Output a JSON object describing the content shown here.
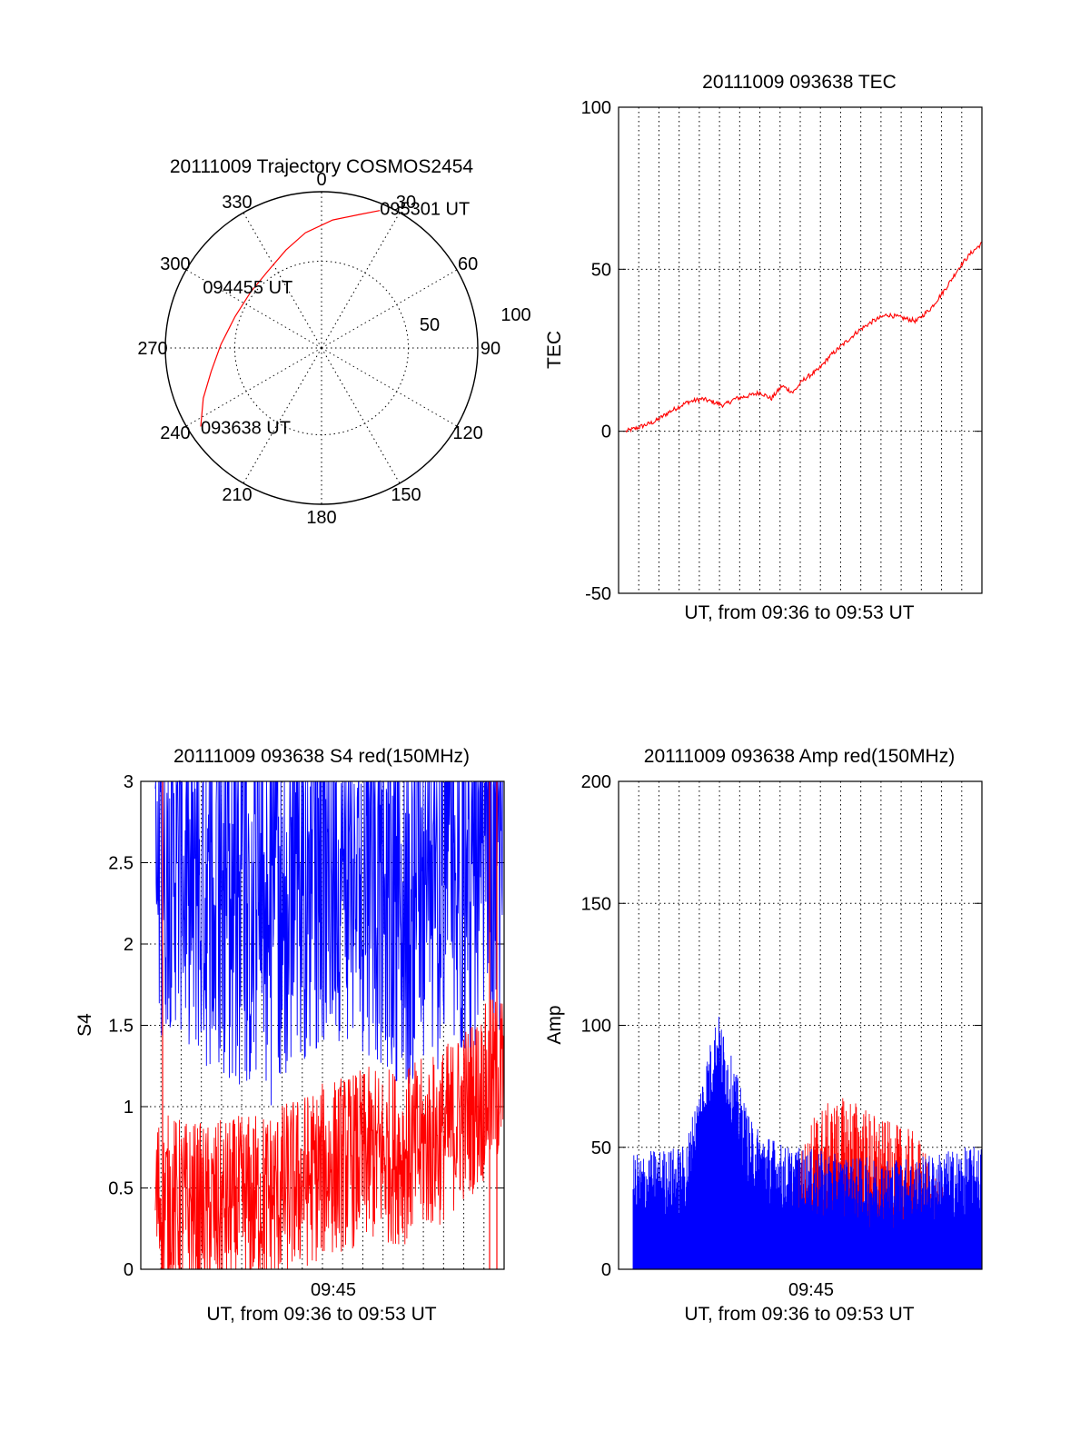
{
  "chart_data": [
    {
      "id": "trajectory",
      "type": "polar",
      "title": "20111009 Trajectory COSMOS2454",
      "azimuth_labels": [
        "0",
        "30",
        "60",
        "90",
        "120",
        "150",
        "180",
        "210",
        "240",
        "270",
        "300",
        "330"
      ],
      "radial_labels": [
        "50",
        "100"
      ],
      "trajectory_color": "#ff0000",
      "trajectory": [
        {
          "az": 237,
          "zen": 83
        },
        {
          "az": 247,
          "zen": 74
        },
        {
          "az": 258,
          "zen": 65
        },
        {
          "az": 272,
          "zen": 58
        },
        {
          "az": 290,
          "zen": 53
        },
        {
          "az": 308,
          "zen": 52
        },
        {
          "az": 325,
          "zen": 54
        },
        {
          "az": 340,
          "zen": 60
        },
        {
          "az": 352,
          "zen": 67
        },
        {
          "az": 5,
          "zen": 74
        },
        {
          "az": 16,
          "zen": 80
        },
        {
          "az": 23,
          "zen": 86
        }
      ],
      "annotations": [
        {
          "text": "095301 UT",
          "az": 23,
          "zen": 86
        },
        {
          "text": "094455 UT",
          "az": 313,
          "zen": 52
        },
        {
          "text": "093638 UT",
          "az": 237,
          "zen": 83
        }
      ]
    },
    {
      "id": "tec",
      "type": "line",
      "title": "20111009 093638 TEC",
      "xlabel": "UT, from 09:36 to 09:53 UT",
      "ylabel": "TEC",
      "ylim": [
        -50,
        100
      ],
      "yticks": [
        "-50",
        "0",
        "50",
        "100"
      ],
      "xticks": [],
      "series": [
        {
          "color": "#ff0000",
          "points": [
            [
              0.02,
              0
            ],
            [
              0.05,
              1
            ],
            [
              0.1,
              3
            ],
            [
              0.14,
              6
            ],
            [
              0.19,
              9
            ],
            [
              0.23,
              10
            ],
            [
              0.26,
              9
            ],
            [
              0.29,
              8
            ],
            [
              0.32,
              10
            ],
            [
              0.36,
              11
            ],
            [
              0.39,
              12
            ],
            [
              0.42,
              10
            ],
            [
              0.45,
              14
            ],
            [
              0.48,
              12
            ],
            [
              0.51,
              16
            ],
            [
              0.55,
              19
            ],
            [
              0.58,
              23
            ],
            [
              0.62,
              27
            ],
            [
              0.66,
              31
            ],
            [
              0.7,
              34
            ],
            [
              0.74,
              36
            ],
            [
              0.78,
              35
            ],
            [
              0.82,
              34
            ],
            [
              0.86,
              38
            ],
            [
              0.9,
              44
            ],
            [
              0.94,
              51
            ],
            [
              0.97,
              55
            ],
            [
              1.0,
              58
            ]
          ]
        }
      ]
    },
    {
      "id": "s4",
      "type": "line",
      "title": "20111009 093638 S4 red(150MHz)",
      "xlabel": "UT, from 09:36 to 09:53 UT",
      "ylabel": "S4",
      "ylim": [
        0,
        3
      ],
      "yticks": [
        "0",
        "0.5",
        "1",
        "1.5",
        "2",
        "2.5",
        "3"
      ],
      "xticks": [
        "09:45"
      ],
      "series": [
        {
          "color": "#0000ff",
          "base": [
            2.2,
            2.4,
            2.1,
            2.0,
            1.9,
            2.2,
            2.3,
            2.2,
            2.0,
            2.1,
            2.1,
            2.3
          ],
          "spread": 0.9
        },
        {
          "color": "#ff0000",
          "base": [
            0.45,
            0.4,
            0.35,
            0.4,
            0.45,
            0.55,
            0.65,
            0.7,
            0.7,
            0.8,
            1.0,
            1.2
          ],
          "spread": 0.55
        }
      ]
    },
    {
      "id": "amp",
      "type": "line",
      "title": "20111009 093638 Amp red(150MHz)",
      "xlabel": "UT, from 09:36 to 09:53 UT",
      "ylabel": "Amp",
      "ylim": [
        0,
        200
      ],
      "yticks": [
        "0",
        "50",
        "100",
        "150",
        "200"
      ],
      "xticks": [
        "09:45"
      ],
      "series": [
        {
          "color": "#ff0000",
          "base": [
            0,
            0,
            0,
            0,
            0,
            0,
            35,
            40,
            30,
            25,
            0,
            0
          ],
          "spread": 45
        },
        {
          "color": "#0000ff",
          "base": [
            25,
            28,
            30,
            85,
            40,
            30,
            28,
            25,
            25,
            25,
            28,
            30
          ],
          "spread": 30
        }
      ]
    }
  ]
}
